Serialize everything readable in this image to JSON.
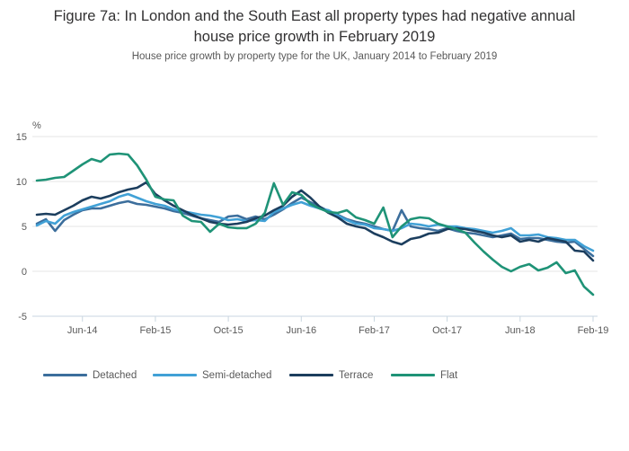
{
  "figure": {
    "title": "Figure 7a: In London and the South East all property types had negative annual house price growth in February 2019",
    "subtitle": "House price growth by property type for the UK, January 2014 to February 2019"
  },
  "y_axis": {
    "unit_label": "%",
    "tick_labels": [
      "15",
      "10",
      "5",
      "0",
      "-5"
    ],
    "tick_values": [
      15,
      10,
      5,
      0,
      -5
    ],
    "min": -5,
    "max": 15,
    "grid": true
  },
  "x_axis": {
    "tick_labels": [
      "Jun-14",
      "Feb-15",
      "Oct-15",
      "Jun-16",
      "Feb-17",
      "Oct-17",
      "Jun-18",
      "Feb-19"
    ],
    "tick_month_indices": [
      5,
      13,
      21,
      29,
      37,
      45,
      53,
      61
    ]
  },
  "colors": {
    "detached": "#3C6E9C",
    "semi_detached": "#41A1D6",
    "terrace": "#1C3E5E",
    "flat": "#1F9377",
    "gridline": "#E4E4E4",
    "axis": "#C9D6E0",
    "title_text": "#323132",
    "muted_text": "#595959"
  },
  "chart_data": {
    "type": "line",
    "title": "Figure 7a: In London and the South East all property types had negative annual house price growth in February 2019",
    "subtitle": "House price growth by property type for the UK, January 2014 to February 2019",
    "x_start": "Jan-14",
    "x_end": "Feb-19",
    "x_unit": "month",
    "ylabel": "%",
    "ylim": [
      -5,
      15
    ],
    "grid": true,
    "legend_position": "bottom",
    "series": [
      {
        "name": "Detached",
        "color": "#3C6E9C",
        "values": [
          5.3,
          5.8,
          4.5,
          5.7,
          6.3,
          6.8,
          7.0,
          7.0,
          7.3,
          7.6,
          7.8,
          7.5,
          7.4,
          7.2,
          7.0,
          6.7,
          6.5,
          6.2,
          5.9,
          5.7,
          5.5,
          6.1,
          6.2,
          5.8,
          6.1,
          5.8,
          6.3,
          6.9,
          7.6,
          8.2,
          7.7,
          7.2,
          6.7,
          6.3,
          5.8,
          5.5,
          5.3,
          5.0,
          4.7,
          4.5,
          6.8,
          5.0,
          4.8,
          4.7,
          4.5,
          4.8,
          4.5,
          4.3,
          4.2,
          4.0,
          3.8,
          4.0,
          4.2,
          3.6,
          3.7,
          3.7,
          3.5,
          3.3,
          3.2,
          3.3,
          2.5,
          1.7
        ]
      },
      {
        "name": "Semi-detached",
        "color": "#41A1D6",
        "values": [
          5.1,
          5.6,
          5.3,
          6.2,
          6.6,
          6.9,
          7.2,
          7.5,
          7.8,
          8.3,
          8.6,
          8.2,
          7.8,
          7.5,
          7.3,
          6.9,
          6.7,
          6.5,
          6.3,
          6.2,
          6.0,
          5.7,
          5.8,
          5.6,
          5.7,
          5.6,
          6.6,
          7.0,
          7.4,
          7.7,
          7.3,
          7.0,
          6.8,
          6.2,
          5.7,
          5.3,
          5.2,
          4.8,
          4.7,
          4.5,
          4.8,
          5.3,
          5.2,
          5.0,
          5.2,
          5.0,
          5.0,
          4.8,
          4.7,
          4.5,
          4.3,
          4.5,
          4.8,
          4.0,
          4.0,
          4.1,
          3.8,
          3.7,
          3.5,
          3.5,
          2.8,
          2.3
        ]
      },
      {
        "name": "Terrace",
        "color": "#1C3E5E",
        "values": [
          6.3,
          6.4,
          6.3,
          6.8,
          7.3,
          7.9,
          8.3,
          8.1,
          8.4,
          8.8,
          9.1,
          9.3,
          9.9,
          8.6,
          7.9,
          7.3,
          6.8,
          6.3,
          5.9,
          5.5,
          5.3,
          5.2,
          5.3,
          5.5,
          5.9,
          6.2,
          6.8,
          7.3,
          8.3,
          9.0,
          8.2,
          7.2,
          6.5,
          6.0,
          5.3,
          5.0,
          4.8,
          4.2,
          3.8,
          3.3,
          3.0,
          3.6,
          3.8,
          4.2,
          4.3,
          4.7,
          4.8,
          4.7,
          4.5,
          4.3,
          4.0,
          3.8,
          4.0,
          3.3,
          3.5,
          3.3,
          3.7,
          3.5,
          3.3,
          2.3,
          2.2,
          1.2
        ]
      },
      {
        "name": "Flat",
        "color": "#1F9377",
        "values": [
          10.1,
          10.2,
          10.4,
          10.5,
          11.2,
          11.9,
          12.5,
          12.2,
          13.0,
          13.1,
          13.0,
          11.8,
          10.2,
          8.3,
          8.0,
          7.9,
          6.2,
          5.6,
          5.5,
          4.4,
          5.3,
          4.9,
          4.8,
          4.8,
          5.3,
          6.5,
          9.8,
          7.4,
          8.8,
          8.5,
          7.5,
          7.0,
          6.6,
          6.5,
          6.8,
          6.0,
          5.7,
          5.3,
          7.1,
          3.8,
          5.0,
          5.8,
          6.0,
          5.9,
          5.3,
          5.0,
          4.7,
          4.3,
          3.2,
          2.2,
          1.3,
          0.5,
          0.0,
          0.5,
          0.8,
          0.1,
          0.4,
          1.0,
          -0.2,
          0.1,
          -1.7,
          -2.6
        ]
      }
    ]
  }
}
